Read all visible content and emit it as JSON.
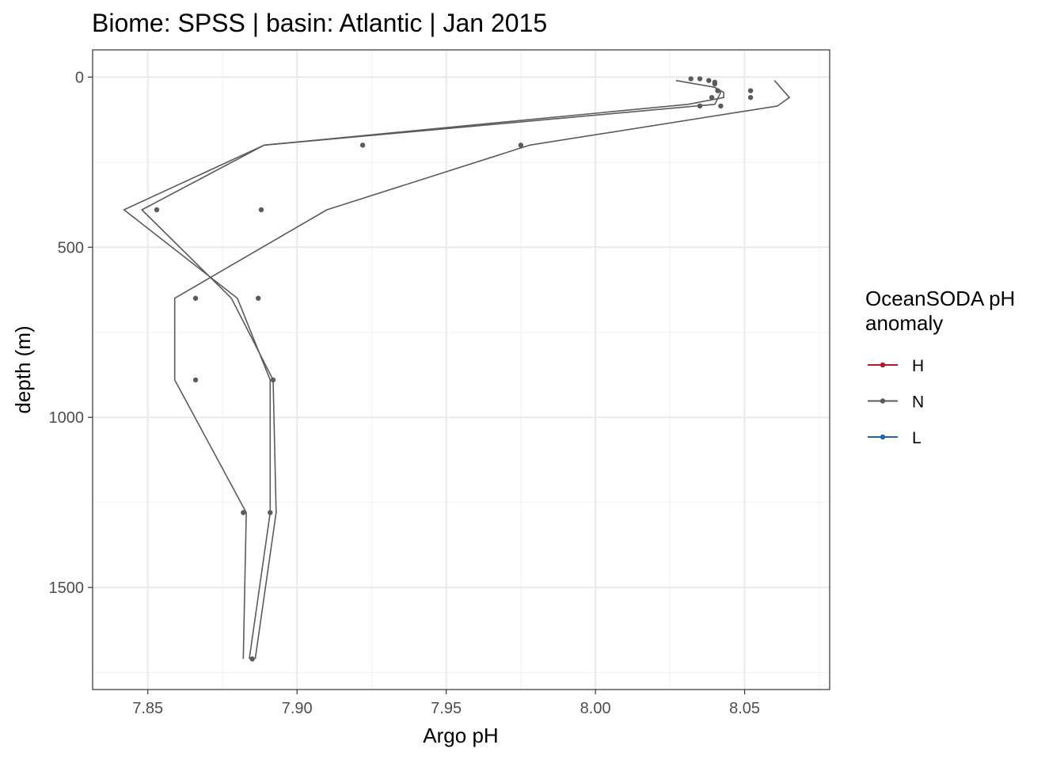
{
  "chart_data": {
    "type": "line",
    "title": "Biome: SPSS | basin: Atlantic  | Jan 2015",
    "xlabel": "Argo pH",
    "ylabel": "depth (m)",
    "xlim": [
      7.8315,
      8.0785
    ],
    "ylim": [
      -80,
      1800
    ],
    "y_reversed": true,
    "x_ticks": [
      7.85,
      7.9,
      7.95,
      8.0,
      8.05
    ],
    "x_tick_labels": [
      "7.85",
      "7.90",
      "7.95",
      "8.00",
      "8.05"
    ],
    "y_ticks": [
      0,
      500,
      1000,
      1500
    ],
    "y_tick_labels": [
      "0",
      "500",
      "1000",
      "1500"
    ],
    "grid": true,
    "legend": {
      "title_line1": "OceanSODA pH",
      "title_line2": "anomaly",
      "placement": "right",
      "entries": [
        {
          "label": "H",
          "color": "#b2182b"
        },
        {
          "label": "N",
          "color": "#5b5b5b"
        },
        {
          "label": "L",
          "color": "#2166ac"
        }
      ]
    },
    "series_color": "#5b5b5b",
    "lines": [
      {
        "group": "N",
        "points": [
          [
            8.06,
            10
          ],
          [
            8.062,
            30
          ],
          [
            8.065,
            60
          ],
          [
            8.061,
            85
          ],
          [
            7.978,
            200
          ],
          [
            7.91,
            390
          ],
          [
            7.859,
            650
          ],
          [
            7.859,
            890
          ],
          [
            7.883,
            1280
          ],
          [
            7.882,
            1710
          ]
        ]
      },
      {
        "group": "N",
        "points": [
          [
            8.027,
            10
          ],
          [
            8.04,
            30
          ],
          [
            8.042,
            45
          ],
          [
            8.04,
            80
          ],
          [
            7.889,
            200
          ],
          [
            7.842,
            390
          ],
          [
            7.88,
            650
          ],
          [
            7.891,
            890
          ],
          [
            7.891,
            1280
          ],
          [
            7.884,
            1710
          ]
        ]
      },
      {
        "group": "N",
        "points": [
          [
            8.04,
            30
          ],
          [
            8.043,
            45
          ],
          [
            8.043,
            60
          ],
          [
            8.031,
            80
          ],
          [
            7.889,
            200
          ],
          [
            7.848,
            390
          ],
          [
            7.878,
            650
          ],
          [
            7.892,
            890
          ],
          [
            7.893,
            1280
          ],
          [
            7.886,
            1710
          ]
        ]
      }
    ],
    "points": [
      {
        "group": "N",
        "x": 8.032,
        "y": 5
      },
      {
        "group": "N",
        "x": 8.035,
        "y": 5
      },
      {
        "group": "N",
        "x": 8.038,
        "y": 10
      },
      {
        "group": "N",
        "x": 8.04,
        "y": 15
      },
      {
        "group": "N",
        "x": 8.04,
        "y": 20
      },
      {
        "group": "N",
        "x": 8.041,
        "y": 40
      },
      {
        "group": "N",
        "x": 8.052,
        "y": 40
      },
      {
        "group": "N",
        "x": 8.039,
        "y": 60
      },
      {
        "group": "N",
        "x": 8.052,
        "y": 60
      },
      {
        "group": "N",
        "x": 8.035,
        "y": 85
      },
      {
        "group": "N",
        "x": 8.042,
        "y": 85
      },
      {
        "group": "N",
        "x": 7.922,
        "y": 200
      },
      {
        "group": "N",
        "x": 7.975,
        "y": 200
      },
      {
        "group": "N",
        "x": 7.853,
        "y": 390
      },
      {
        "group": "N",
        "x": 7.888,
        "y": 390
      },
      {
        "group": "N",
        "x": 7.866,
        "y": 650
      },
      {
        "group": "N",
        "x": 7.887,
        "y": 650
      },
      {
        "group": "N",
        "x": 7.866,
        "y": 890
      },
      {
        "group": "N",
        "x": 7.892,
        "y": 890
      },
      {
        "group": "N",
        "x": 7.882,
        "y": 1280
      },
      {
        "group": "N",
        "x": 7.891,
        "y": 1280
      },
      {
        "group": "N",
        "x": 7.885,
        "y": 1710
      }
    ]
  }
}
